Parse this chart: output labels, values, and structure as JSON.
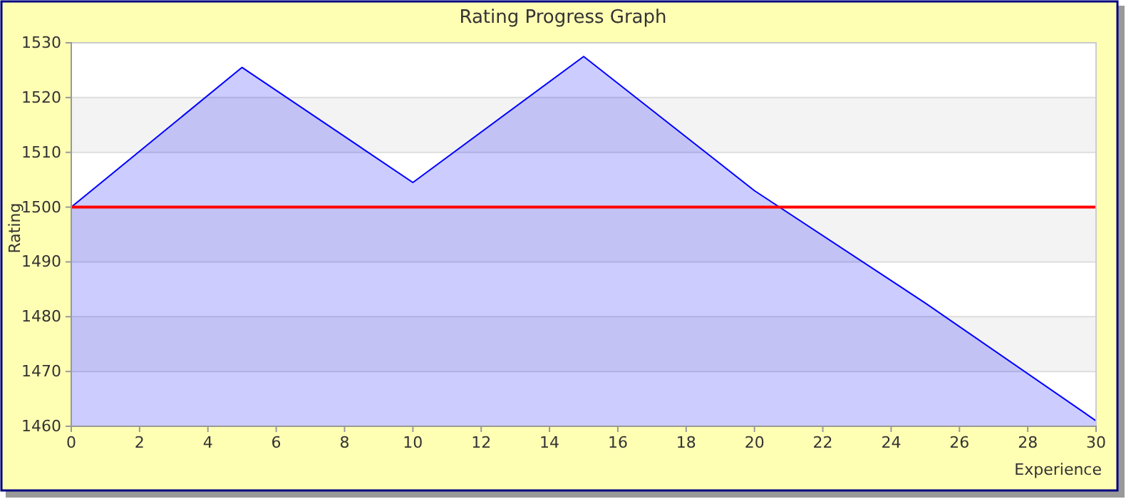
{
  "chart_data": {
    "type": "area",
    "title": "Rating Progress Graph",
    "xlabel": "Experience",
    "ylabel": "Rating",
    "x": [
      0,
      5,
      10,
      15,
      20,
      25,
      30
    ],
    "series": [
      {
        "color": "#0000ff",
        "values": [
          1500,
          1525.5,
          1504.5,
          1527.5,
          1503,
          1482.5,
          1461
        ]
      }
    ],
    "xlim": [
      0,
      30
    ],
    "xticks": [
      0,
      2,
      4,
      6,
      8,
      10,
      12,
      14,
      16,
      18,
      20,
      22,
      24,
      26,
      28,
      30
    ],
    "ylim": [
      1460,
      1530
    ],
    "yticks": [
      1460,
      1470,
      1480,
      1490,
      1500,
      1510,
      1520,
      1530
    ],
    "ref_lines": [
      {
        "axis": "y",
        "value": 1500,
        "color": "#ff0000"
      }
    ],
    "grid": "y",
    "marker": "none",
    "line_style": "solid"
  }
}
